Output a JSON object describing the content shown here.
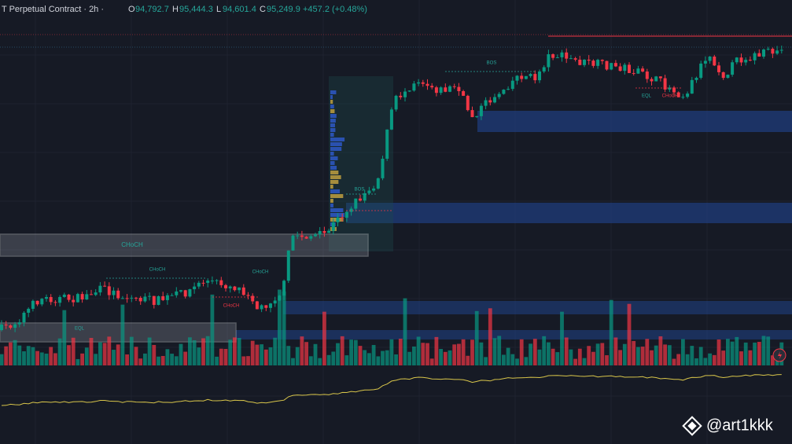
{
  "header": {
    "symbol": "T Perpetual Contract · 2h ·",
    "open_label": "O",
    "open": "94,792.7",
    "high_label": "H",
    "high": "95,444.3",
    "low_label": "L",
    "low": "94,601.4",
    "close_label": "C",
    "close": "95,249.9",
    "change": "+457.2 (+0.48%)"
  },
  "annotations": {
    "bos_top": "BOS",
    "bos_mid": "BOS",
    "choch_box": "CHoCH",
    "choch_upper": "CHoCH",
    "choch_blue": "CHoCH",
    "choch_low": "CHoCH",
    "choch_right": "CHoCH",
    "eql_left": "EQL",
    "eql_right": "EQL"
  },
  "watermark": "@art1kkk"
}
